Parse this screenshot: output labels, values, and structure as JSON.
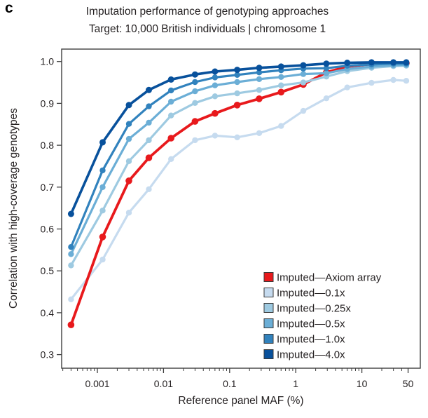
{
  "panel_label": "c",
  "chart_data": {
    "type": "line",
    "title": "Imputation performance of genotyping approaches",
    "subtitle": "Target: 10,000 British individuals | chromosome 1",
    "x_axis": {
      "label": "Reference panel MAF (%)",
      "scale": "log",
      "ticks": [
        0.001,
        0.01,
        0.1,
        1,
        10,
        50
      ],
      "tick_labels": [
        "0.001",
        "0.01",
        "0.1",
        "1",
        "10",
        "50"
      ],
      "range": [
        0.0003,
        75
      ]
    },
    "y_axis": {
      "label": "Correlation with high-coverage genotypes",
      "ticks": [
        1.0,
        0.9,
        0.8,
        0.7,
        0.6,
        0.5,
        0.4,
        0.3
      ],
      "tick_labels": [
        "1.0",
        "0.9",
        "0.8",
        "0.7",
        "0.6",
        "0.5",
        "0.4",
        "0.3"
      ],
      "range": [
        0.27,
        1.03
      ]
    },
    "grid": false,
    "legend_position": "inside-bottom-right",
    "x": [
      0.0004,
      0.0012,
      0.003,
      0.006,
      0.013,
      0.03,
      0.06,
      0.13,
      0.28,
      0.6,
      1.3,
      2.9,
      6,
      14,
      30,
      47
    ],
    "series": [
      {
        "name": "Imputed—Axiom array",
        "color": "#e8191c",
        "values": [
          0.371,
          0.581,
          0.715,
          0.77,
          0.817,
          0.857,
          0.876,
          0.896,
          0.911,
          0.927,
          0.945,
          0.974,
          0.988,
          0.994,
          0.996,
          0.996
        ]
      },
      {
        "name": "Imputed—0.1x",
        "color": "#c6dbef",
        "values": [
          0.432,
          0.527,
          0.639,
          0.695,
          0.767,
          0.812,
          0.823,
          0.819,
          0.829,
          0.846,
          0.882,
          0.912,
          0.938,
          0.949,
          0.956,
          0.954
        ]
      },
      {
        "name": "Imputed—0.25x",
        "color": "#9ecae1",
        "values": [
          0.513,
          0.644,
          0.762,
          0.812,
          0.871,
          0.901,
          0.917,
          0.924,
          0.932,
          0.943,
          0.95,
          0.964,
          0.977,
          0.985,
          0.989,
          0.99
        ]
      },
      {
        "name": "Imputed—0.5x",
        "color": "#6baed6",
        "values": [
          0.54,
          0.7,
          0.815,
          0.854,
          0.904,
          0.929,
          0.943,
          0.951,
          0.958,
          0.963,
          0.97,
          0.972,
          0.982,
          0.988,
          0.991,
          0.992
        ]
      },
      {
        "name": "Imputed—1.0x",
        "color": "#3182bd",
        "values": [
          0.557,
          0.74,
          0.851,
          0.893,
          0.931,
          0.951,
          0.962,
          0.968,
          0.974,
          0.979,
          0.983,
          0.984,
          0.99,
          0.993,
          0.995,
          0.995
        ]
      },
      {
        "name": "Imputed—4.0x",
        "color": "#08519c",
        "values": [
          0.636,
          0.807,
          0.896,
          0.932,
          0.957,
          0.969,
          0.976,
          0.98,
          0.985,
          0.988,
          0.991,
          0.995,
          0.997,
          0.998,
          0.998,
          0.998
        ]
      }
    ],
    "draw_order": [
      1,
      0,
      2,
      3,
      4,
      5
    ]
  },
  "colors": {
    "frame": "#3f3f3f",
    "text": "#231f20",
    "background": "#ffffff"
  }
}
